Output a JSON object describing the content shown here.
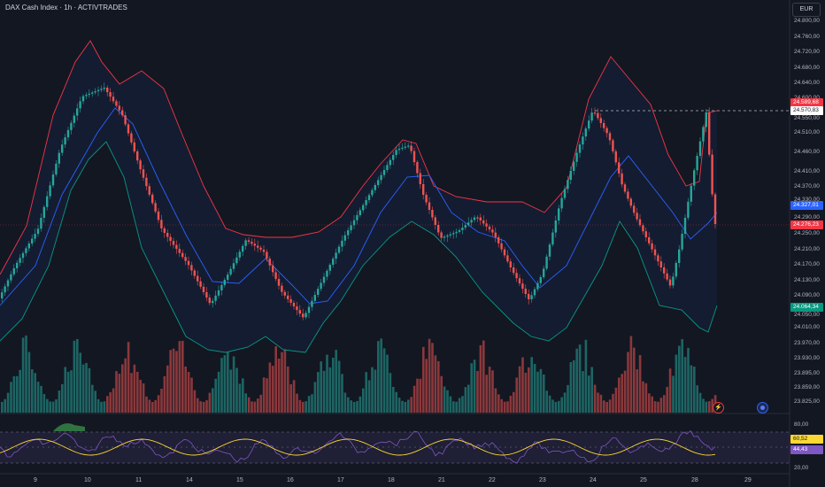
{
  "header": {
    "title": "DAX Cash Index · 1h · ACTIVTRADES",
    "currency": "EUR"
  },
  "price_axis": {
    "labels": [
      "24.800,00",
      "24.760,00",
      "24.720,00",
      "24.680,00",
      "24.640,00",
      "24.600,00",
      "24.550,00",
      "24.510,00",
      "24.460,00",
      "24.410,00",
      "24.370,00",
      "24.330,00",
      "24.290,00",
      "24.250,00",
      "24.210,00",
      "24.170,00",
      "24.130,00",
      "24.090,00",
      "24.050,00",
      "24.010,00",
      "23.970,00",
      "23.930,00",
      "23.895,00",
      "23.859,00",
      "23.825,00"
    ]
  },
  "price_tags": {
    "upper_band": "24.589,68",
    "dashed_level": "24.570,83",
    "middle_band": "24.327,01",
    "last_price": "24.276,23",
    "lower_band": "24.064,34"
  },
  "rsi_axis": {
    "labels": [
      "80,00",
      "20,00"
    ],
    "rsi_value": "44,43",
    "rsi_ma": "60,52"
  },
  "time_axis": {
    "labels": [
      "9",
      "10",
      "11",
      "14",
      "15",
      "16",
      "17",
      "18",
      "21",
      "22",
      "23",
      "24",
      "25",
      "28",
      "29"
    ]
  },
  "icons": {
    "event": "lightning-icon",
    "calendar": "calendar-icon"
  },
  "colors": {
    "up": "#26a69a",
    "down": "#ef5350",
    "upper_band": "#f23645",
    "middle_band": "#2962ff",
    "lower_band": "#089981",
    "rsi": "#7e57c2",
    "rsi_ma": "#fdd835",
    "background": "#131722"
  }
}
